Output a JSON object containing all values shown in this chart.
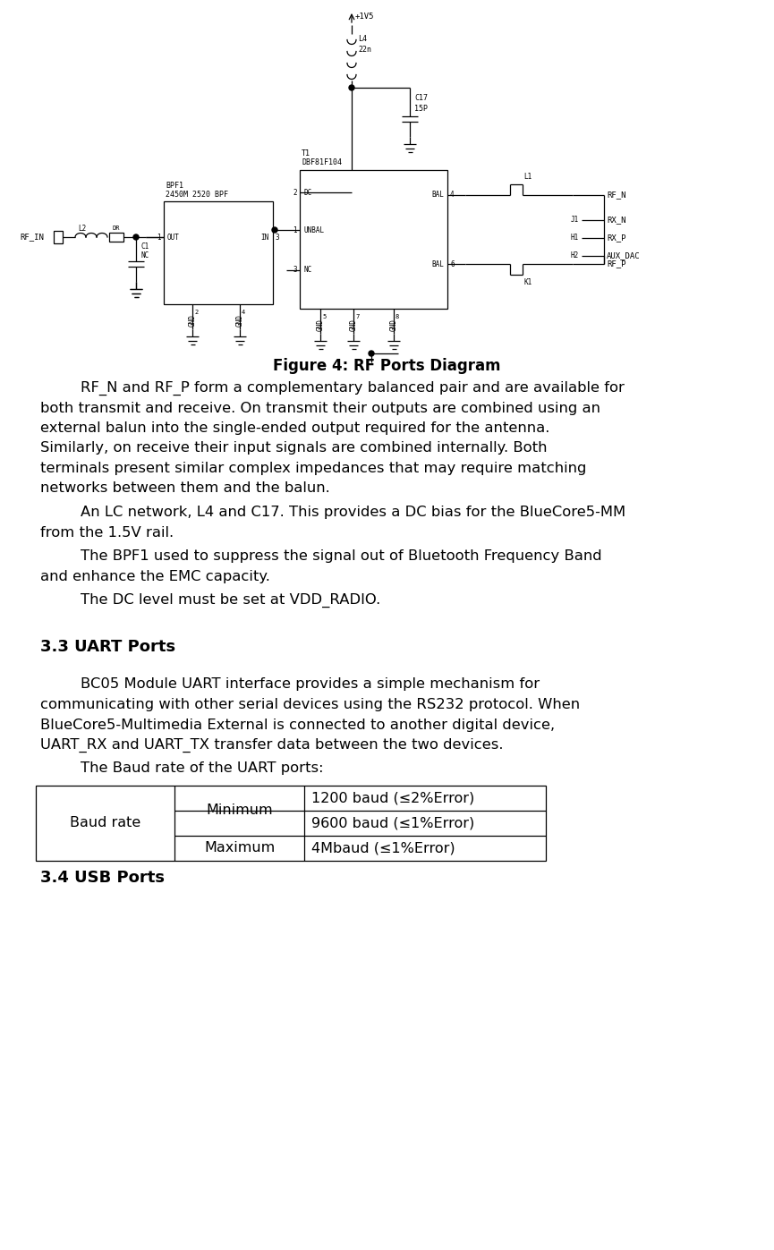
{
  "fig_width": 8.65,
  "fig_height": 13.97,
  "bg_color": "#ffffff",
  "figure_caption": "Figure 4: RF Ports Diagram",
  "para1": "RF_N and RF_P form a complementary balanced pair and are available for both transmit and receive. On transmit their outputs are combined using an external balun into the single-ended output required for the antenna. Similarly, on receive their input signals are combined internally. Both terminals present similar complex impedances that may require matching networks between them and the balun.",
  "para2": "An LC network, L4 and C17. This provides a DC bias for the BlueCore5-MM from the 1.5V rail.",
  "para3": "The BPF1 used to suppress the signal out of Bluetooth Frequency Band and enhance the EMC capacity.",
  "para4": "The DC level must be set at VDD_RADIO.",
  "section_title": "3.3 UART Ports",
  "para5": "BC05 Module UART interface provides a simple mechanism for communicating with other serial devices using the RS232 protocol. When BlueCore5-Multimedia External is connected to another digital device, UART_RX and UART_TX transfer data between the two devices.",
  "para6": "The Baud rate of the UART ports:",
  "table_col1": "Baud rate",
  "table_col2_r1": "Minimum",
  "table_col2_r2": "Maximum",
  "table_col3_r1": "1200 baud (≤2%Error)",
  "table_col3_r2": "9600 baud (≤1%Error)",
  "table_col3_r3": "4Mbaud (≤1%Error)",
  "section_title2": "3.4 USB Ports",
  "text_color": "#000000"
}
